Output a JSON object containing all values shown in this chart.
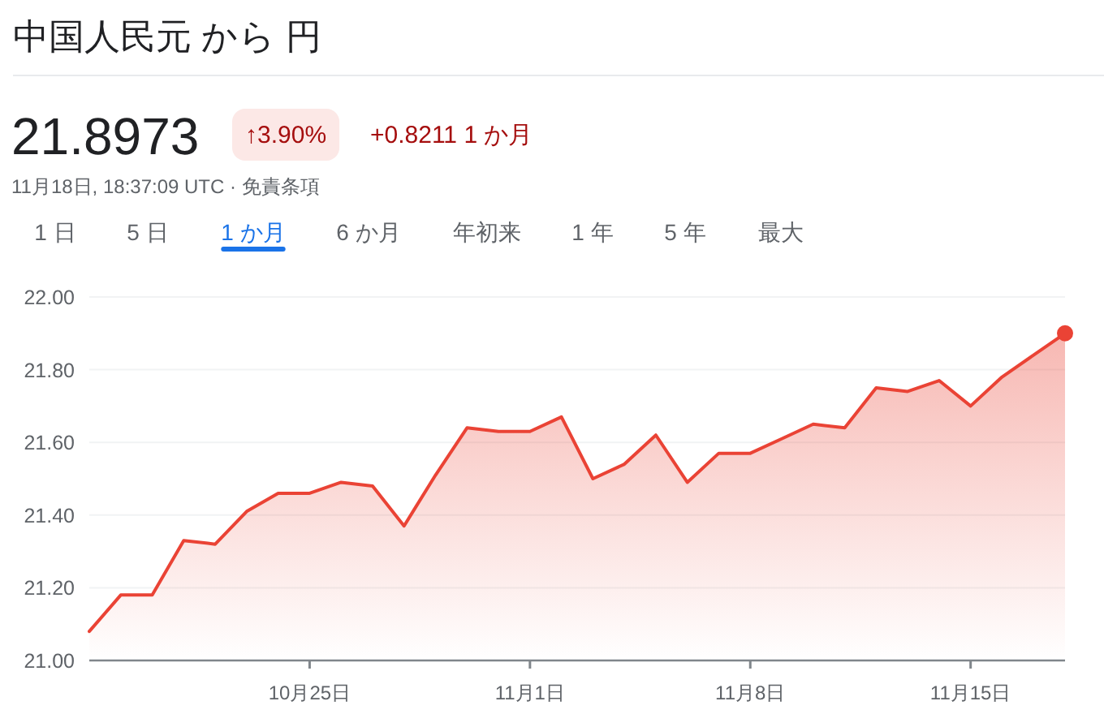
{
  "chart_data": {
    "type": "area",
    "title": "中国人民元 から 円",
    "annotations": [
      "21.8973",
      "↑3.90%",
      "+0.8211 1 か月",
      "11月18日, 18:37:09 UTC · 免責条項",
      "1 日",
      "5 日",
      "1 か月",
      "6 か月",
      "年初来",
      "1 年",
      "5 年",
      "最大"
    ],
    "x": [
      "--10-18",
      "--10-19",
      "--10-20",
      "--10-21",
      "--10-22",
      "--10-23",
      "--10-24",
      "--10-25",
      "--10-26",
      "--10-27",
      "--10-28",
      "--10-29",
      "--10-30",
      "--10-31",
      "--11-01",
      "--11-02",
      "--11-03",
      "--11-04",
      "--11-05",
      "--11-06",
      "--11-07",
      "--11-08",
      "--11-09",
      "--11-10",
      "--11-11",
      "--11-12",
      "--11-13",
      "--11-14",
      "--11-15",
      "--11-16",
      "--11-17",
      "--11-18"
    ],
    "series": [
      {
        "color": "#ea4335",
        "values": [
          21.08,
          21.18,
          21.18,
          21.33,
          21.32,
          21.41,
          21.46,
          21.46,
          21.49,
          21.48,
          21.37,
          21.51,
          21.64,
          21.63,
          21.63,
          21.67,
          21.5,
          21.54,
          21.62,
          21.49,
          21.57,
          21.57,
          21.61,
          21.65,
          21.64,
          21.75,
          21.74,
          21.77,
          21.7,
          21.78,
          21.84,
          21.9
        ]
      },
      {
        "type": "scatter",
        "color": "#ea4335",
        "x": [
          "--11-18"
        ],
        "values": [
          21.9
        ],
        "marker": "circle"
      }
    ],
    "xlim": [
      "--10-18",
      "--11-18"
    ],
    "xticks": [
      {
        "value": "--10-25",
        "label": "10月25日"
      },
      {
        "value": "--11-01",
        "label": "11月1日"
      },
      {
        "value": "--11-08",
        "label": "11月8日"
      },
      {
        "value": "--11-15",
        "label": "11月15日"
      }
    ],
    "ylim": [
      21,
      22
    ],
    "yticks": [
      {
        "value": 21,
        "label": "21.00"
      },
      {
        "value": 21.2,
        "label": "21.20"
      },
      {
        "value": 21.4,
        "label": "21.40"
      },
      {
        "value": 21.6,
        "label": "21.60"
      },
      {
        "value": 21.8,
        "label": "21.80"
      },
      {
        "value": 22,
        "label": "22.00"
      }
    ],
    "grid": "y"
  }
}
